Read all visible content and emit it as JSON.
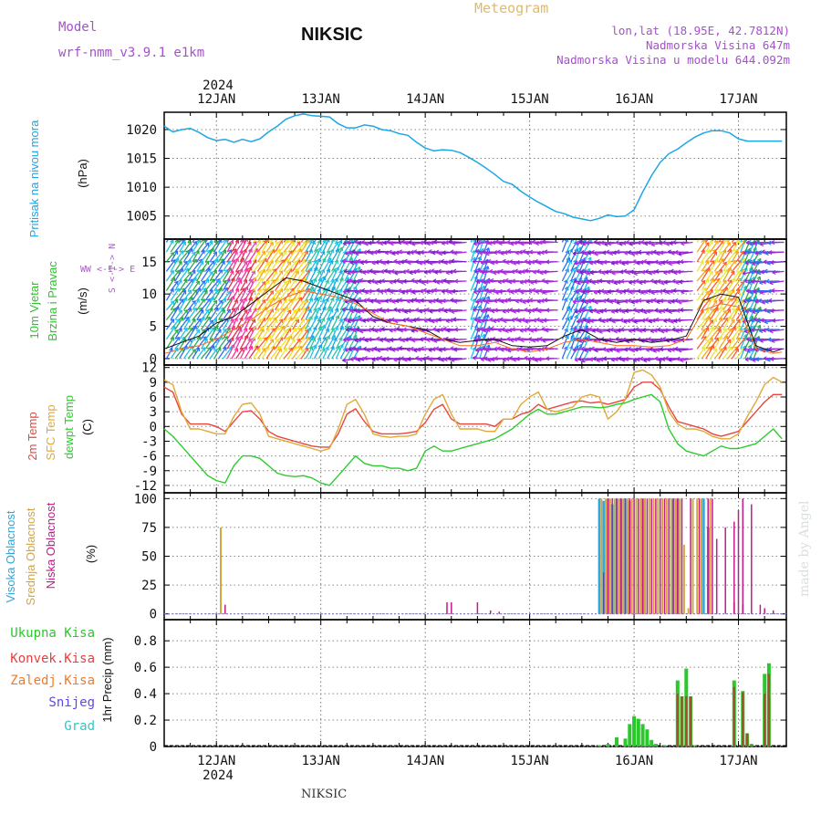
{
  "header": {
    "model_label": "Model",
    "model_name": "wrf-nmm_v3.9.1  e1km",
    "station": "NIKSIC",
    "meteogram": "Meteogram",
    "coords": "lon,lat (18.95E, 42.7812N)",
    "elevation": "Nadmorska Visina 647m",
    "model_elevation": "Nadmorska Visina u modelu 644.092m",
    "year": "2024",
    "footer_station": "NIKSIC",
    "watermark": "made by Angel"
  },
  "colors": {
    "pressure": "#1ba7e6",
    "temp2m": "#e8463e",
    "sfc": "#e0a93a",
    "dewpt": "#2ccc2c",
    "high_cloud": "#2aa8e0",
    "mid_cloud": "#d4a640",
    "low_cloud": "#c21a8a",
    "total_precip": "#2bc82b",
    "conv_precip": "#ea3c3c",
    "frz_precip": "#f07a2a",
    "snow": "#5a4be0",
    "hail": "#2cc8c8"
  },
  "chart_data": [
    {
      "type": "line",
      "id": "pressure",
      "ylabel": [
        "Pritisak na nivou mora",
        "(hPa)"
      ],
      "ylim": [
        1001,
        1023
      ],
      "yticks": [
        1005,
        1010,
        1015,
        1020
      ],
      "x": [
        0,
        2,
        4,
        6,
        8,
        10,
        12,
        14,
        16,
        18,
        20,
        22,
        24,
        26,
        28,
        30,
        32,
        34,
        36,
        38,
        40,
        42,
        44,
        46,
        48,
        50,
        52,
        54,
        56,
        58,
        60,
        62,
        64,
        66,
        68,
        70,
        72,
        74,
        76,
        78,
        80,
        82,
        84,
        86,
        88,
        90,
        92,
        94,
        96,
        98,
        100,
        102,
        104,
        106,
        108,
        110,
        112,
        114,
        116,
        118,
        120,
        122,
        124,
        126,
        128,
        130,
        132,
        134,
        136,
        138,
        140,
        142
      ],
      "series": [
        {
          "name": "",
          "values": [
            1020.6,
            1019.6,
            1020.0,
            1020.2,
            1019.5,
            1018.6,
            1018.1,
            1018.3,
            1017.8,
            1018.3,
            1017.9,
            1018.4,
            1019.6,
            1020.6,
            1021.8,
            1022.4,
            1022.7,
            1022.4,
            1022.3,
            1022.2,
            1021.0,
            1020.3,
            1020.3,
            1020.8,
            1020.6,
            1020.0,
            1019.8,
            1019.3,
            1019.0,
            1017.8,
            1016.8,
            1016.3,
            1016.5,
            1016.4,
            1016.0,
            1015.2,
            1014.3,
            1013.3,
            1012.2,
            1011.0,
            1010.5,
            1009.3,
            1008.3,
            1007.4,
            1006.6,
            1005.8,
            1005.4,
            1004.8,
            1004.5,
            1004.2,
            1004.6,
            1005.2,
            1004.9,
            1005.0,
            1006.1,
            1009.2,
            1012.0,
            1014.3,
            1015.8,
            1016.6,
            1017.7,
            1018.7,
            1019.4,
            1019.8,
            1019.8,
            1019.4,
            1018.4,
            1018.0,
            1018.0,
            1018.0,
            1018.0,
            1018.0
          ]
        }
      ]
    },
    {
      "type": "line",
      "id": "wind",
      "ylabel": [
        "10m Vjetar",
        "Brzina i Pravac",
        "(m/s)"
      ],
      "compass": "W <-I-> E",
      "compass_ns": "S <-I-> N",
      "ylim": [
        -1,
        18.5
      ],
      "yticks": [
        0,
        5,
        10,
        15
      ],
      "x": [
        0,
        4,
        8,
        12,
        16,
        20,
        24,
        28,
        32,
        36,
        40,
        44,
        48,
        52,
        56,
        60,
        64,
        68,
        72,
        76,
        80,
        84,
        88,
        92,
        96,
        100,
        104,
        108,
        112,
        116,
        120,
        124,
        128,
        132,
        136,
        140,
        142
      ],
      "series": [
        {
          "name": "",
          "values": [
            1.5,
            2.5,
            3.5,
            5.5,
            6.5,
            8.5,
            10.5,
            12.5,
            12.0,
            11.0,
            10.0,
            9.0,
            6.5,
            5.5,
            5.0,
            4.5,
            3.0,
            2.5,
            2.8,
            3.0,
            2.0,
            1.8,
            2.0,
            3.5,
            4.5,
            3.0,
            2.5,
            3.0,
            2.5,
            2.8,
            3.5,
            9.0,
            10.0,
            9.5,
            2.0,
            1.0,
            1.5
          ]
        },
        {
          "name": "",
          "values": [
            0.8,
            1.5,
            2.0,
            3.0,
            4.5,
            6.0,
            8.0,
            9.5,
            10.5,
            10.0,
            9.5,
            8.5,
            7.0,
            5.5,
            5.0,
            4.0,
            3.0,
            2.0,
            2.0,
            2.5,
            1.5,
            1.0,
            1.5,
            2.5,
            3.0,
            2.5,
            2.0,
            2.0,
            1.8,
            2.0,
            3.0,
            7.5,
            8.5,
            8.0,
            1.5,
            0.8,
            1.0
          ]
        }
      ]
    },
    {
      "type": "line",
      "id": "temperature",
      "ylabel": [
        "2m Temp",
        "SFC Temp",
        "dewpt Temp",
        "(C)"
      ],
      "ylim": [
        -13.5,
        12.5
      ],
      "yticks": [
        -12,
        -9,
        -6,
        -3,
        0,
        3,
        6,
        9,
        12
      ],
      "x": [
        0,
        2,
        4,
        6,
        8,
        10,
        12,
        14,
        16,
        18,
        20,
        22,
        24,
        26,
        28,
        30,
        32,
        34,
        36,
        38,
        40,
        42,
        44,
        46,
        48,
        50,
        52,
        54,
        56,
        58,
        60,
        62,
        64,
        66,
        68,
        70,
        72,
        74,
        76,
        78,
        80,
        82,
        84,
        86,
        88,
        90,
        92,
        94,
        96,
        98,
        100,
        102,
        104,
        106,
        108,
        110,
        112,
        114,
        116,
        118,
        120,
        122,
        124,
        126,
        128,
        130,
        132,
        134,
        136,
        138,
        140,
        142
      ],
      "series": [
        {
          "name": "2m Temp",
          "values": [
            8.0,
            7.0,
            2.5,
            0.5,
            0.5,
            0.5,
            0.0,
            -1.0,
            1.0,
            3.0,
            3.2,
            1.5,
            -1.0,
            -2.0,
            -2.5,
            -3.0,
            -3.5,
            -4.0,
            -4.2,
            -4.2,
            -1.5,
            2.5,
            3.6,
            1.0,
            -1.0,
            -1.5,
            -1.5,
            -1.5,
            -1.3,
            -1.0,
            0.8,
            3.5,
            4.5,
            1.5,
            0.5,
            0.5,
            0.5,
            0.5,
            0.0,
            1.5,
            1.5,
            2.5,
            3.0,
            4.5,
            3.5,
            4.0,
            4.5,
            5.0,
            5.2,
            4.8,
            5.0,
            4.5,
            5.0,
            5.5,
            8.0,
            9.0,
            9.0,
            7.5,
            4.0,
            1.0,
            0.5,
            0.0,
            -0.5,
            -1.5,
            -2.0,
            -1.5,
            -1.0,
            1.0,
            3.0,
            5.0,
            6.5,
            6.5
          ]
        },
        {
          "name": "SFC Temp",
          "values": [
            9.5,
            8.5,
            3.0,
            -0.5,
            -0.5,
            -1.0,
            -1.5,
            -1.5,
            2.0,
            4.5,
            4.8,
            2.5,
            -2.0,
            -2.5,
            -3.0,
            -3.5,
            -4.0,
            -4.5,
            -5.0,
            -4.5,
            -0.5,
            4.5,
            5.5,
            2.5,
            -1.5,
            -2.0,
            -2.2,
            -2.0,
            -2.0,
            -1.5,
            2.5,
            5.5,
            6.5,
            2.5,
            -0.5,
            -0.5,
            -0.5,
            -1.0,
            -1.0,
            1.5,
            1.5,
            4.5,
            6.0,
            7.0,
            3.5,
            3.0,
            3.5,
            4.0,
            6.0,
            6.5,
            6.0,
            1.5,
            3.0,
            5.5,
            11.0,
            11.5,
            10.5,
            8.0,
            3.0,
            0.5,
            -0.5,
            -0.5,
            -1.0,
            -2.0,
            -2.5,
            -2.5,
            -1.5,
            2.0,
            5.0,
            8.5,
            10.0,
            9.0
          ]
        },
        {
          "name": "dewpt Temp",
          "values": [
            -0.5,
            -2.0,
            -4.0,
            -6.0,
            -8.0,
            -10.0,
            -11.0,
            -11.5,
            -8.0,
            -6.0,
            -6.0,
            -6.5,
            -8.0,
            -9.5,
            -10.0,
            -10.2,
            -10.0,
            -10.5,
            -11.5,
            -12.0,
            -10.0,
            -8.0,
            -6.0,
            -7.5,
            -8.0,
            -8.0,
            -8.5,
            -8.5,
            -9.0,
            -8.5,
            -5.0,
            -4.0,
            -5.0,
            -5.0,
            -4.5,
            -4.0,
            -3.5,
            -3.0,
            -2.5,
            -1.5,
            -0.5,
            1.0,
            2.5,
            3.5,
            2.5,
            2.5,
            3.0,
            3.5,
            4.0,
            4.0,
            3.8,
            4.0,
            4.5,
            4.8,
            5.5,
            6.0,
            6.5,
            5.0,
            -0.5,
            -3.5,
            -5.0,
            -5.5,
            -6.0,
            -5.0,
            -4.0,
            -4.5,
            -4.5,
            -4.0,
            -3.5,
            -2.0,
            -0.5,
            -2.5
          ]
        }
      ]
    },
    {
      "type": "bar",
      "id": "clouds",
      "ylabel": [
        "Visoka Oblacnost",
        "Srednja Oblacnost",
        "Niska Oblacnost",
        "(%)"
      ],
      "ylim": [
        -5,
        105
      ],
      "yticks": [
        0,
        25,
        50,
        75,
        100
      ],
      "series": [
        {
          "name": "Visoka Oblacnost",
          "x": [
            100,
            101,
            102,
            103,
            104,
            105,
            106,
            107,
            110,
            117,
            118,
            124,
            125
          ],
          "values": [
            100,
            98,
            100,
            95,
            100,
            100,
            100,
            98,
            100,
            100,
            100,
            100,
            75
          ]
        },
        {
          "name": "Srednja Oblacnost",
          "x": [
            13,
            100.5,
            101.5,
            102.5,
            103.5,
            104.5,
            105.5,
            106.5,
            107.5,
            108.5,
            109.5,
            110.5,
            111.5,
            112.5,
            113.5,
            114.5,
            115.5,
            116.5,
            117.5,
            118.5,
            119.5,
            120.5,
            121.5,
            122.5,
            123.5,
            125.5,
            131,
            133
          ],
          "values": [
            75,
            100,
            100,
            100,
            100,
            100,
            100,
            100,
            100,
            100,
            100,
            100,
            100,
            100,
            100,
            100,
            100,
            100,
            100,
            100,
            60,
            5,
            100,
            100,
            100,
            100,
            10,
            8
          ]
        },
        {
          "name": "Niska Oblacnost",
          "x": [
            14,
            65,
            66,
            72,
            75,
            77,
            101,
            102,
            103,
            104,
            105,
            106,
            107,
            108,
            109,
            110,
            111,
            112,
            113,
            114,
            115,
            116,
            117,
            118,
            119,
            121,
            123,
            125,
            126,
            127,
            129,
            131,
            132,
            133,
            135,
            137,
            138,
            140
          ],
          "values": [
            8,
            10,
            10,
            10,
            3,
            2,
            36,
            100,
            100,
            100,
            100,
            100,
            100,
            100,
            100,
            100,
            100,
            100,
            100,
            100,
            100,
            100,
            100,
            100,
            100,
            100,
            100,
            100,
            100,
            65,
            75,
            80,
            90,
            100,
            95,
            8,
            5,
            3
          ]
        }
      ]
    },
    {
      "type": "bar",
      "id": "precip",
      "ylabel": [
        "1hr Precip (mm)"
      ],
      "legend": [
        "Ukupna Kisa",
        "Konvek.Kisa",
        "Zaledj.Kisa",
        "Snijeg",
        "Grad"
      ],
      "ylim": [
        0,
        0.96
      ],
      "yticks": [
        0,
        0.2,
        0.4,
        0.6,
        0.8
      ],
      "series": [
        {
          "name": "Ukupna Kisa",
          "x": [
            100,
            102,
            104,
            106,
            107,
            108,
            109,
            110,
            111,
            112,
            113,
            115,
            118,
            119,
            120,
            121,
            122,
            131,
            133,
            134,
            135,
            138,
            139
          ],
          "values": [
            0.01,
            0.02,
            0.07,
            0.06,
            0.17,
            0.23,
            0.21,
            0.17,
            0.13,
            0.05,
            0.02,
            0.01,
            0.5,
            0.38,
            0.59,
            0.38,
            0.01,
            0.5,
            0.42,
            0.1,
            0.02,
            0.55,
            0.63
          ]
        },
        {
          "name": "Konvek.Kisa",
          "x": [
            118,
            119,
            120,
            121,
            131,
            133,
            134,
            135,
            138,
            139
          ],
          "values": [
            0.4,
            0.38,
            0.38,
            0.38,
            0.45,
            0.41,
            0.1,
            0.01,
            0.4,
            0.55
          ]
        }
      ]
    }
  ],
  "x_axis": {
    "day_labels": [
      "12JAN",
      "13JAN",
      "14JAN",
      "15JAN",
      "16JAN",
      "17JAN"
    ],
    "day_hours": [
      12,
      36,
      60,
      84,
      108,
      132
    ],
    "tick_step_hours": 6,
    "range_hours": [
      0,
      143
    ]
  }
}
